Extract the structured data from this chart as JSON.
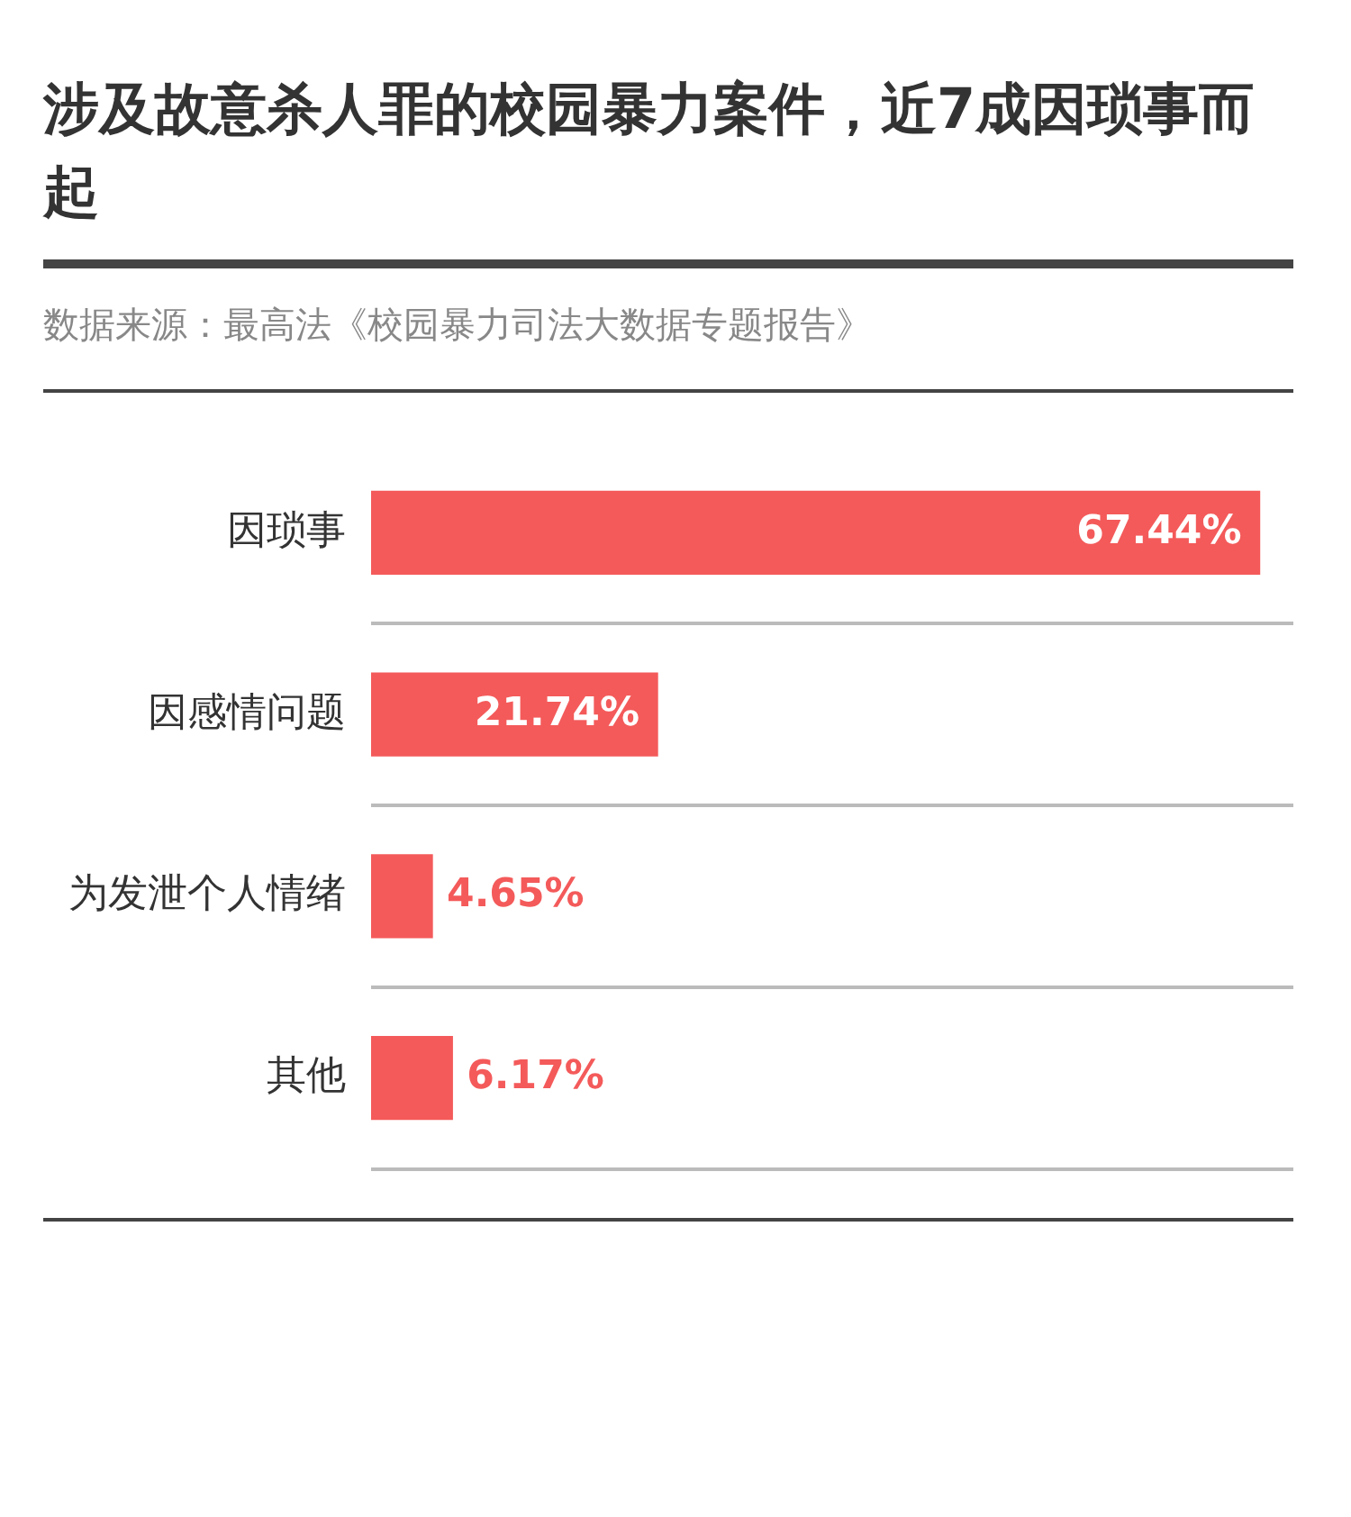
{
  "chart_data": {
    "type": "bar",
    "orientation": "horizontal",
    "title": "涉及故意杀人罪的校园暴力案件，近7成因琐事而起",
    "subtitle": "数据来源：最高法《校园暴力司法大数据专题报告》",
    "categories": [
      "因琐事",
      "因感情问题",
      "为发泄个人情绪",
      "其他"
    ],
    "values": [
      67.44,
      21.74,
      4.65,
      6.17
    ],
    "value_labels": [
      "67.44%",
      "21.74%",
      "4.65%",
      "6.17%"
    ],
    "color": "#f45a5a",
    "grid": "y",
    "legend": false
  }
}
